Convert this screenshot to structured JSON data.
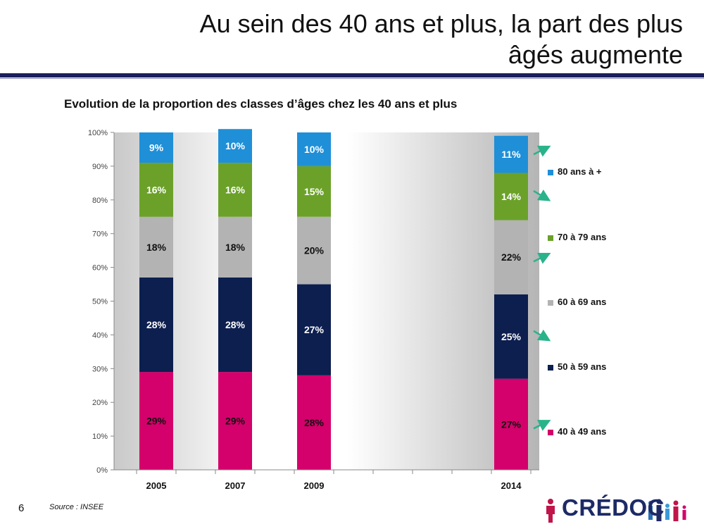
{
  "slide": {
    "title": "Au sein des 40 ans et plus, la part des plus\nâgés augmente",
    "page_number": "6",
    "source": "Source : INSEE",
    "logo_text": "CRÉDOC"
  },
  "colors": {
    "title_rule": "#1a1f5e",
    "trend_arrow": "#2ab38a"
  },
  "chart_data": {
    "type": "bar",
    "stacked": true,
    "title": "Evolution de la proportion des classes d’âges chez les 40 ans et plus",
    "categories": [
      "2005",
      "2007",
      "2009",
      "2014"
    ],
    "x_is_time": true,
    "ylim": [
      0,
      100
    ],
    "yticks": [
      "0%",
      "10%",
      "20%",
      "30%",
      "40%",
      "50%",
      "60%",
      "70%",
      "80%",
      "90%",
      "100%"
    ],
    "grid": false,
    "legend_position": "right",
    "series": [
      {
        "name": "40 à 49 ans",
        "color": "#d4006b",
        "label_color": "#111111",
        "values": [
          29,
          29,
          28,
          27
        ],
        "labels": [
          "29%",
          "29%",
          "28%",
          "27%"
        ]
      },
      {
        "name": "50 à 59 ans",
        "color": "#0d1f4f",
        "label_color": "#ffffff",
        "values": [
          28,
          28,
          27,
          25
        ],
        "labels": [
          "28%",
          "28%",
          "27%",
          "25%"
        ]
      },
      {
        "name": "60 à 69 ans",
        "color": "#b3b3b3",
        "label_color": "#111111",
        "values": [
          18,
          18,
          20,
          22
        ],
        "labels": [
          "18%",
          "18%",
          "20%",
          "22%"
        ]
      },
      {
        "name": "70 à 79 ans",
        "color": "#6ba129",
        "label_color": "#ffffff",
        "values": [
          16,
          16,
          15,
          14
        ],
        "labels": [
          "16%",
          "16%",
          "15%",
          "14%"
        ]
      },
      {
        "name": "80 ans à +",
        "color": "#1f8fd8",
        "label_color": "#ffffff",
        "values": [
          9,
          10,
          10,
          11
        ],
        "labels": [
          "9%",
          "10%",
          "10%",
          "11%"
        ]
      }
    ],
    "annotations": {
      "trend_arrows": [
        "up",
        "down",
        "up",
        "down",
        "up"
      ]
    }
  }
}
